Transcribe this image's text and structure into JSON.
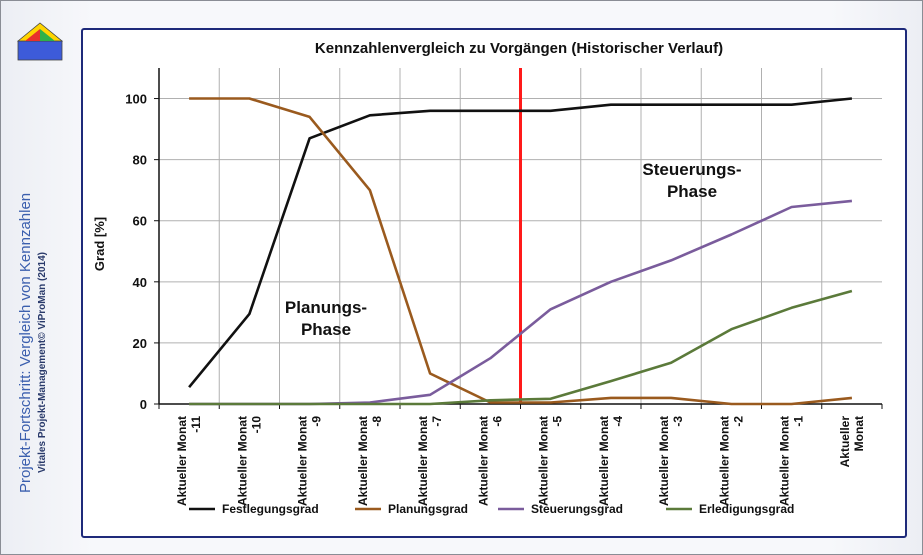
{
  "sidebar": {
    "title": "Projekt-Fortschritt: Vergleich von Kennzahlen",
    "subtitle": "Vitales Projekt-Management© ViProMan (2014)"
  },
  "annotations": {
    "planning_phase_line1": "Planungs-",
    "planning_phase_line2": "Phase",
    "control_phase_line1": "Steuerungs-",
    "control_phase_line2": "Phase"
  },
  "colors": {
    "Festlegungsgrad": "#111111",
    "Planungsgrad": "#9a5a1e",
    "Steuerungsgrad": "#7a5c9c",
    "Erledigungsgrad": "#5b7a3a",
    "marker": "#ff1a1a",
    "grid": "#b0b0b0"
  },
  "chart_data": {
    "type": "line",
    "title": "Kennzahlenvergleich  zu Vorgängen (Historischer Verlauf)",
    "ylabel": "Grad [%]",
    "xlabel": "",
    "ylim": [
      0,
      110
    ],
    "yticks": [
      0,
      20,
      40,
      60,
      80,
      100
    ],
    "grid": true,
    "legend_position": "bottom",
    "vertical_marker_category": "Aktueller Monat -6",
    "categories": [
      "Aktueller Monat -11",
      "Aktueller Monat -10",
      "Aktueller Monat -9",
      "Aktueller Monat -8",
      "Aktueller Monat -7",
      "Aktueller Monat -6",
      "Aktueller Monat -5",
      "Aktueller Monat -4",
      "Aktueller Monat -3",
      "Aktueller Monat -2",
      "Aktueller Monat -1",
      "Aktueller Monat"
    ],
    "series": [
      {
        "name": "Festlegungsgrad",
        "values": [
          5.5,
          29.5,
          87,
          94.5,
          96,
          96,
          96,
          98,
          98,
          98,
          98,
          100
        ]
      },
      {
        "name": "Planungsgrad",
        "values": [
          100,
          100,
          94,
          70,
          10,
          0.5,
          0.5,
          2,
          2,
          0,
          0,
          2
        ]
      },
      {
        "name": "Steuerungsgrad",
        "values": [
          0,
          0,
          0,
          0.5,
          3,
          15,
          31,
          40,
          47,
          55.5,
          64.5,
          66.5
        ]
      },
      {
        "name": "Erledigungsgrad",
        "values": [
          0,
          0,
          0,
          0,
          0,
          1.2,
          1.7,
          7.5,
          13.5,
          24.5,
          31.5,
          37
        ]
      }
    ]
  }
}
